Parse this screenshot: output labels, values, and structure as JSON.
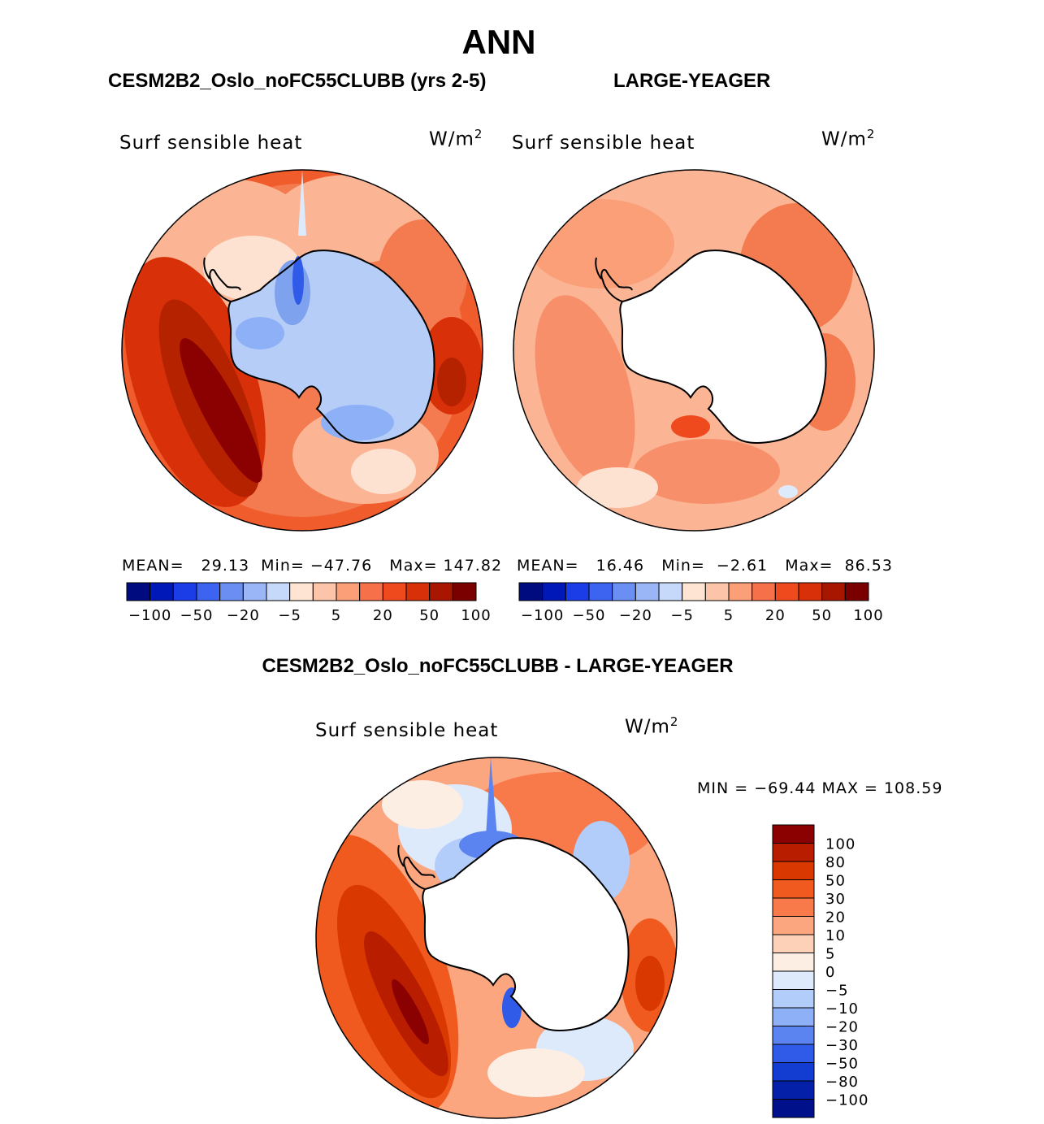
{
  "page": {
    "title": "ANN",
    "case_title": "CESM2B2_Oslo_noFC55CLUBB (yrs 2-5)",
    "ref_title": "LARGE-YEAGER",
    "diff_title": "CESM2B2_Oslo_noFC55CLUBB - LARGE-YEAGER"
  },
  "panels": {
    "case": {
      "variable": "Surf  sensible  heat",
      "units_base": "W/m",
      "units_exp": "2",
      "mean_label": "MEAN=",
      "mean_value": "29.13",
      "min_label": "Min=",
      "min_value": "−47.76",
      "max_label": "Max=",
      "max_value": "147.82"
    },
    "ref": {
      "variable": "Surf  sensible  heat",
      "units_base": "W/m",
      "units_exp": "2",
      "mean_label": "MEAN=",
      "mean_value": "16.46",
      "min_label": "Min=",
      "min_value": "−2.61",
      "max_label": "Max=",
      "max_value": "86.53"
    },
    "diff": {
      "variable": "Surf  sensible  heat",
      "units_base": "W/m",
      "units_exp": "2",
      "minmax_text": "MIN = −69.44  MAX = 108.59"
    }
  },
  "colorbars": {
    "field_levels": [
      "−100",
      "−50",
      "−20",
      "−5",
      "5",
      "20",
      "50",
      "100"
    ],
    "field_colors": [
      "#000b80",
      "#0018b8",
      "#1a3de8",
      "#3c64f0",
      "#6a8ef2",
      "#9bb6f6",
      "#c6d9fa",
      "#fde4d3",
      "#fcc4a8",
      "#fa9f78",
      "#f6714a",
      "#ef4a1e",
      "#d83008",
      "#a81600",
      "#7a0000"
    ],
    "diff_levels": [
      "100",
      "80",
      "50",
      "30",
      "20",
      "10",
      "5",
      "0",
      "−5",
      "−10",
      "−20",
      "−30",
      "−50",
      "−80",
      "−100"
    ],
    "diff_colors": [
      "#8b0000",
      "#b81d00",
      "#d93800",
      "#f05a1e",
      "#f8794a",
      "#fca680",
      "#fdd0b8",
      "#fdeee4",
      "#ddeafc",
      "#b3cdfa",
      "#8eb0f6",
      "#5c84f0",
      "#2f5be8",
      "#123dd0",
      "#0520a8",
      "#00108a"
    ]
  },
  "chart_data": [
    {
      "type": "heatmap",
      "title": "CESM2B2_Oslo_noFC55CLUBB (yrs 2-5)",
      "variable": "Surf sensible heat",
      "units": "W/m2",
      "projection": "south polar stereographic",
      "levels": [
        -100,
        -80,
        -50,
        -30,
        -20,
        -10,
        -5,
        5,
        10,
        20,
        30,
        50,
        80,
        100
      ],
      "stats": {
        "mean": 29.13,
        "min": -47.76,
        "max": 147.82
      }
    },
    {
      "type": "heatmap",
      "title": "LARGE-YEAGER",
      "variable": "Surf sensible heat",
      "units": "W/m2",
      "projection": "south polar stereographic",
      "levels": [
        -100,
        -80,
        -50,
        -30,
        -20,
        -10,
        -5,
        5,
        10,
        20,
        30,
        50,
        80,
        100
      ],
      "stats": {
        "mean": 16.46,
        "min": -2.61,
        "max": 86.53
      }
    },
    {
      "type": "heatmap",
      "title": "CESM2B2_Oslo_noFC55CLUBB - LARGE-YEAGER",
      "variable": "Surf sensible heat",
      "units": "W/m2",
      "projection": "south polar stereographic",
      "levels": [
        -100,
        -80,
        -50,
        -30,
        -20,
        -10,
        -5,
        0,
        5,
        10,
        20,
        30,
        50,
        80,
        100
      ],
      "stats": {
        "min": -69.44,
        "max": 108.59
      }
    }
  ]
}
